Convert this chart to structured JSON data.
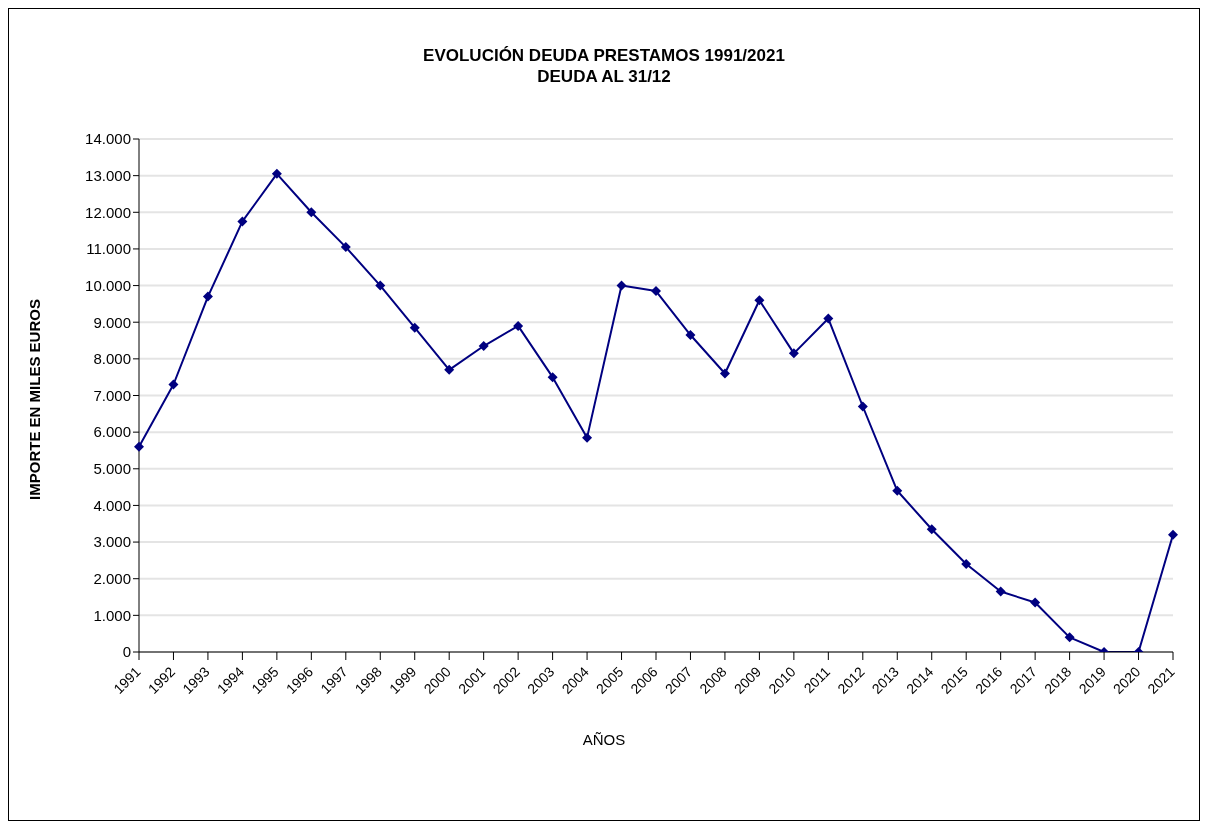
{
  "chart_data": {
    "type": "line",
    "title": "EVOLUCIÓN DEUDA PRESTAMOS 1991/2021",
    "subtitle": "DEUDA AL 31/12",
    "xlabel": "AÑOS",
    "ylabel": "IMPORTE EN MILES EUROS",
    "categories": [
      "1991",
      "1992",
      "1993",
      "1994",
      "1995",
      "1996",
      "1997",
      "1998",
      "1999",
      "2000",
      "2001",
      "2002",
      "2003",
      "2004",
      "2005",
      "2006",
      "2007",
      "2008",
      "2009",
      "2010",
      "2011",
      "2012",
      "2013",
      "2014",
      "2015",
      "2016",
      "2017",
      "2018",
      "2019",
      "2020",
      "2021"
    ],
    "series": [
      {
        "color": "#000080",
        "values": [
          5600,
          7300,
          9700,
          11750,
          13050,
          12000,
          11050,
          10000,
          8850,
          7700,
          8350,
          8900,
          7500,
          5850,
          10000,
          9850,
          8650,
          7600,
          9600,
          8150,
          9100,
          6700,
          4400,
          3350,
          2400,
          1650,
          1350,
          400,
          0,
          0,
          3200
        ]
      }
    ],
    "ylim": [
      0,
      14000
    ],
    "yticks": [
      0,
      {
        "value": 1000,
        "label": "1.000"
      },
      {
        "value": 2000,
        "label": "2.000"
      },
      {
        "value": 3000,
        "label": "3.000"
      },
      {
        "value": 4000,
        "label": "4.000"
      },
      {
        "value": 5000,
        "label": "5.000"
      },
      {
        "value": 6000,
        "label": "6.000"
      },
      {
        "value": 7000,
        "label": "7.000"
      },
      {
        "value": 8000,
        "label": "8.000"
      },
      {
        "value": 9000,
        "label": "9.000"
      },
      {
        "value": 10000,
        "label": "10.000"
      },
      {
        "value": 11000,
        "label": "11.000"
      },
      {
        "value": 12000,
        "label": "12.000"
      },
      {
        "value": 13000,
        "label": "13.000"
      },
      {
        "value": 14000,
        "label": "14.000"
      }
    ],
    "grid": "y",
    "marker": "diamond",
    "line_style": "solid"
  }
}
